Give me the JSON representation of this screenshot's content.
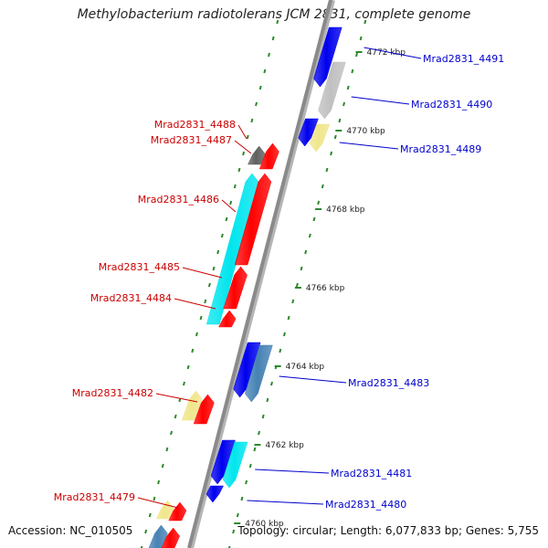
{
  "title": "Methylobacterium radiotolerans JCM 2831, complete genome",
  "footer": {
    "accession": "Accession: NC_010505",
    "summary": "Topology: circular; Length: 6,077,833 bp; Genes: 5,755"
  },
  "colors": {
    "backbone": "#8a8a8a",
    "tick": "#2d8a2d",
    "label_left": "#cc0000",
    "label_right": "#0000cc",
    "red": "#ff0000",
    "blue": "#0000ee",
    "cyan": "#00e5ee",
    "steel": "#4682b4",
    "khaki": "#f0e68c",
    "grey": "#c0c0c0",
    "darkgrey": "#606060"
  },
  "scale_labels": [
    "4772 kbp",
    "4770 kbp",
    "4768 kbp",
    "4766 kbp",
    "4764 kbp",
    "4762 kbp",
    "4760 kbp"
  ],
  "genes_left": [
    {
      "name": "Mrad2831_4488",
      "color": "darkgrey"
    },
    {
      "name": "Mrad2831_4487",
      "color": "red"
    },
    {
      "name": "Mrad2831_4486",
      "color": "cyan"
    },
    {
      "name": "Mrad2831_4485",
      "color": "red"
    },
    {
      "name": "Mrad2831_4484",
      "color": "red"
    },
    {
      "name": "Mrad2831_4482",
      "color": "red"
    },
    {
      "name": "Mrad2831_4479",
      "color": "red"
    }
  ],
  "genes_right": [
    {
      "name": "Mrad2831_4491",
      "color": "blue"
    },
    {
      "name": "Mrad2831_4490",
      "color": "grey"
    },
    {
      "name": "Mrad2831_4489",
      "color": "khaki"
    },
    {
      "name": "Mrad2831_4483",
      "color": "steel"
    },
    {
      "name": "Mrad2831_4481",
      "color": "cyan"
    },
    {
      "name": "Mrad2831_4480",
      "color": "blue"
    }
  ]
}
